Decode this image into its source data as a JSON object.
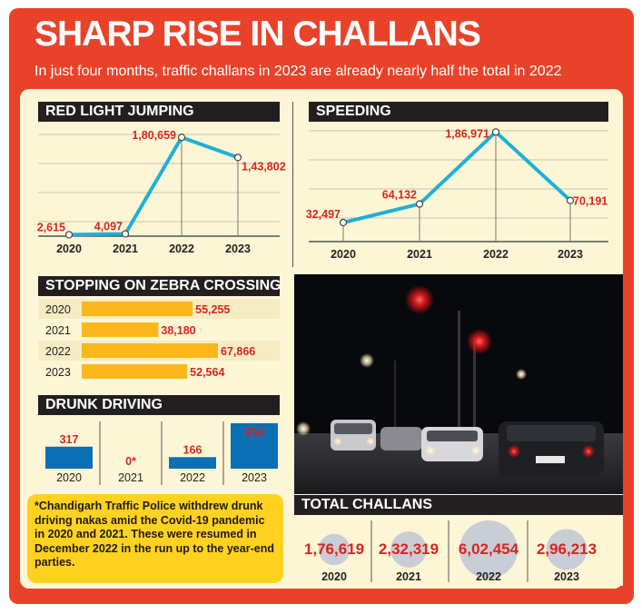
{
  "header": {
    "title": "SHARP RISE IN CHALLANS",
    "subtitle": "In just four months, traffic challans in 2023 are already nearly half the total in 2022"
  },
  "colors": {
    "frame": "#e8432a",
    "panel": "#fdf6d6",
    "line": "#1fb0d6",
    "bar_yellow": "#fbb71b",
    "bar_blue": "#0b6fb3",
    "value_red": "#d7261e",
    "note_bg": "#ffd21f"
  },
  "chart_data": [
    {
      "type": "line",
      "title": "RED LIGHT JUMPING",
      "categories": [
        "2020",
        "2021",
        "2022",
        "2023"
      ],
      "values": [
        2615,
        4097,
        180659,
        143802
      ],
      "value_labels": [
        "2,615",
        "4,097",
        "1,80,659",
        "1,43,802"
      ]
    },
    {
      "type": "line",
      "title": "SPEEDING",
      "categories": [
        "2020",
        "2021",
        "2022",
        "2023"
      ],
      "values": [
        32497,
        64132,
        186971,
        70191
      ],
      "value_labels": [
        "32,497",
        "64,132",
        "1,86,971",
        "70,191"
      ]
    },
    {
      "type": "bar",
      "orientation": "horizontal",
      "title": "STOPPING ON ZEBRA CROSSING",
      "categories": [
        "2020",
        "2021",
        "2022",
        "2023"
      ],
      "values": [
        55255,
        38180,
        67866,
        52564
      ],
      "value_labels": [
        "55,255",
        "38,180",
        "67,866",
        "52,564"
      ]
    },
    {
      "type": "bar",
      "title": "DRUNK DRIVING",
      "categories": [
        "2020",
        "2021",
        "2022",
        "2023"
      ],
      "values": [
        317,
        0,
        166,
        654
      ],
      "value_labels": [
        "317",
        "0*",
        "166",
        "654"
      ]
    },
    {
      "type": "bubble",
      "title": "TOTAL CHALLANS",
      "categories": [
        "2020",
        "2021",
        "2022",
        "2023"
      ],
      "values": [
        176619,
        232319,
        602454,
        296213
      ],
      "value_labels": [
        "1,76,619",
        "2,32,319",
        "6,02,454",
        "2,96,213"
      ]
    }
  ],
  "note": "*Chandigarh Traffic Police withdrew drunk driving nakas amid the Covid-19 pandemic in 2020 and 2021. These were resumed in December 2022 in the run up to the year-end parties."
}
